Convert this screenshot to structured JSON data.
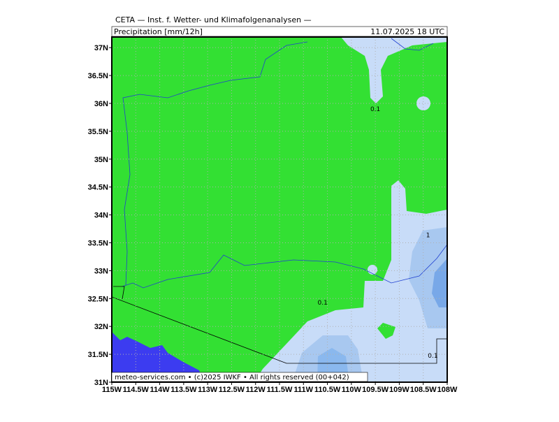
{
  "header": {
    "title": "CETA — Inst. f. Wetter- und Klimafolgenanalysen —",
    "parameter": "Precipitation [mm/12h]",
    "valid_time": "11.07.2025 18 UTC"
  },
  "map": {
    "lon_range": [
      -115,
      -108
    ],
    "lat_range": [
      31,
      37.19
    ],
    "lat_ticks": [
      {
        "value": 31,
        "label": "31N"
      },
      {
        "value": 31.5,
        "label": "31.5N"
      },
      {
        "value": 32,
        "label": "32N"
      },
      {
        "value": 32.5,
        "label": "32.5N"
      },
      {
        "value": 33,
        "label": "33N"
      },
      {
        "value": 33.5,
        "label": "33.5N"
      },
      {
        "value": 34,
        "label": "34N"
      },
      {
        "value": 34.5,
        "label": "34.5N"
      },
      {
        "value": 35,
        "label": "35N"
      },
      {
        "value": 35.5,
        "label": "35.5N"
      },
      {
        "value": 36,
        "label": "36N"
      },
      {
        "value": 36.5,
        "label": "36.5N"
      },
      {
        "value": 37,
        "label": "37N"
      }
    ],
    "lon_ticks": [
      {
        "value": -115,
        "label": "115W"
      },
      {
        "value": -114.5,
        "label": "114.5W"
      },
      {
        "value": -114,
        "label": "114W"
      },
      {
        "value": -113.5,
        "label": "113.5W"
      },
      {
        "value": -113,
        "label": "113W"
      },
      {
        "value": -112.5,
        "label": "112.5W"
      },
      {
        "value": -112,
        "label": "112W"
      },
      {
        "value": -111.5,
        "label": "111.5W"
      },
      {
        "value": -111,
        "label": "111W"
      },
      {
        "value": -110.5,
        "label": "110.5W"
      },
      {
        "value": -110,
        "label": "110W"
      },
      {
        "value": -109.5,
        "label": "109.5W"
      },
      {
        "value": -109,
        "label": "109W"
      },
      {
        "value": -108.5,
        "label": "108.5W"
      },
      {
        "value": -108,
        "label": "108W"
      }
    ],
    "contour_labels": [
      {
        "text": "0.1",
        "lon": -109.5,
        "lat": 35.86
      },
      {
        "text": "0.1",
        "lon": -110.6,
        "lat": 32.39
      },
      {
        "text": "0.1",
        "lon": -108.3,
        "lat": 31.44
      },
      {
        "text": "1",
        "lon": -108.4,
        "lat": 33.6
      }
    ]
  },
  "footer": {
    "text": "meteo-services.com • (c)2025 IWKF • All rights reserved (00+042)"
  }
}
